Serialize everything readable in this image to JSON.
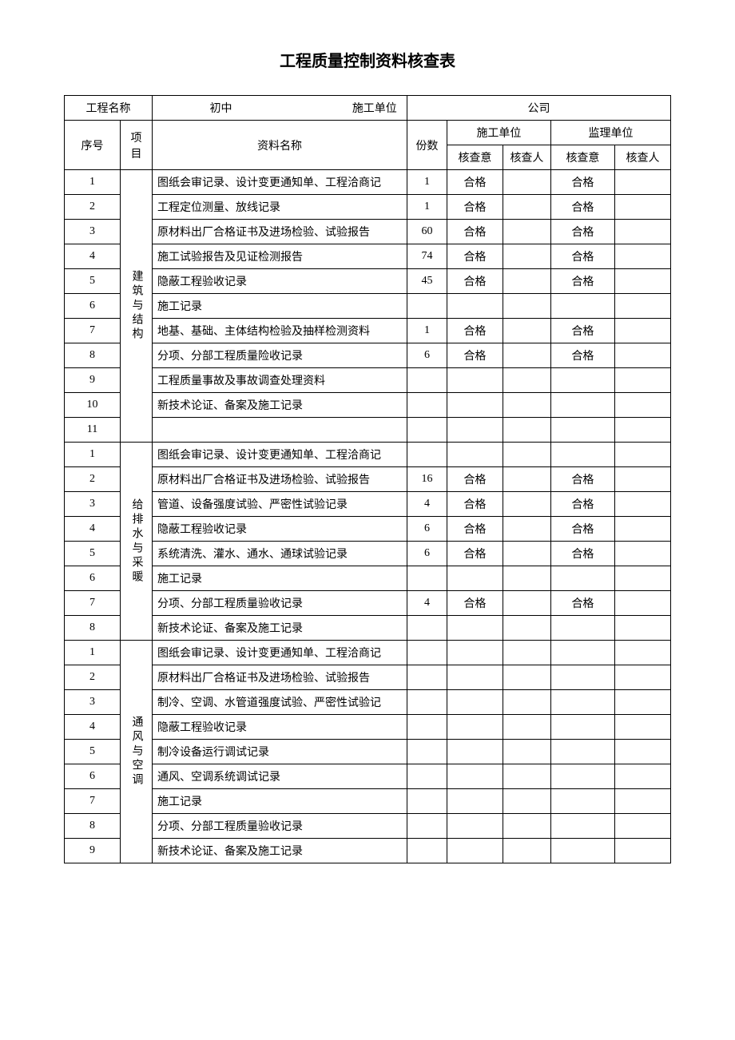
{
  "title": "工程质量控制资料核查表",
  "header_row": {
    "project_name_label": "工程名称",
    "project_name_value": "初中",
    "construction_unit_label": "施工单位",
    "construction_unit_value": "公司"
  },
  "columns": {
    "seq": "序号",
    "category": "项目",
    "doc_name": "资料名称",
    "qty": "份数",
    "construction_unit": "施工单位",
    "supervision_unit": "监理单位",
    "check_opinion": "核查意",
    "check_person": "核查人"
  },
  "sections": [
    {
      "category": "建筑与结构",
      "rows": [
        {
          "num": "1",
          "name": "图纸会审记录、设计变更通知单、工程洽商记",
          "qty": "1",
          "c1": "合格",
          "p1": "",
          "c2": "合格",
          "p2": ""
        },
        {
          "num": "2",
          "name": "工程定位测量、放线记录",
          "qty": "1",
          "c1": "合格",
          "p1": "",
          "c2": "合格",
          "p2": ""
        },
        {
          "num": "3",
          "name": "原材料出厂合格证书及进场检验、试验报告",
          "qty": "60",
          "c1": "合格",
          "p1": "",
          "c2": "合格",
          "p2": ""
        },
        {
          "num": "4",
          "name": "施工试验报告及见证检测报告",
          "qty": "74",
          "c1": "合格",
          "p1": "",
          "c2": "合格",
          "p2": ""
        },
        {
          "num": "5",
          "name": "隐蔽工程验收记录",
          "qty": "45",
          "c1": "合格",
          "p1": "",
          "c2": "合格",
          "p2": ""
        },
        {
          "num": "6",
          "name": "施工记录",
          "qty": "",
          "c1": "",
          "p1": "",
          "c2": "",
          "p2": ""
        },
        {
          "num": "7",
          "name": "地基、基础、主体结构检验及抽样检测资料",
          "qty": "1",
          "c1": "合格",
          "p1": "",
          "c2": "合格",
          "p2": ""
        },
        {
          "num": "8",
          "name": "分项、分部工程质量险收记录",
          "qty": "6",
          "c1": "合格",
          "p1": "",
          "c2": "合格",
          "p2": ""
        },
        {
          "num": "9",
          "name": "工程质量事故及事故调查处理资料",
          "qty": "",
          "c1": "",
          "p1": "",
          "c2": "",
          "p2": ""
        },
        {
          "num": "10",
          "name": "新技术论证、备案及施工记录",
          "qty": "",
          "c1": "",
          "p1": "",
          "c2": "",
          "p2": ""
        },
        {
          "num": "11",
          "name": "",
          "qty": "",
          "c1": "",
          "p1": "",
          "c2": "",
          "p2": ""
        }
      ]
    },
    {
      "category": "给排水与采暖",
      "rows": [
        {
          "num": "1",
          "name": "图纸会审记录、设计变更通知单、工程洽商记",
          "qty": "",
          "c1": "",
          "p1": "",
          "c2": "",
          "p2": ""
        },
        {
          "num": "2",
          "name": "原材料出厂合格证书及进场检验、试验报告",
          "qty": "16",
          "c1": "合格",
          "p1": "",
          "c2": "合格",
          "p2": ""
        },
        {
          "num": "3",
          "name": "管道、设备强度试验、严密性试验记录",
          "qty": "4",
          "c1": "合格",
          "p1": "",
          "c2": "合格",
          "p2": ""
        },
        {
          "num": "4",
          "name": "隐蔽工程验收记录",
          "qty": "6",
          "c1": "合格",
          "p1": "",
          "c2": "合格",
          "p2": ""
        },
        {
          "num": "5",
          "name": "系统清洗、灌水、通水、通球试验记录",
          "qty": "6",
          "c1": "合格",
          "p1": "",
          "c2": "合格",
          "p2": ""
        },
        {
          "num": "6",
          "name": "施工记录",
          "qty": "",
          "c1": "",
          "p1": "",
          "c2": "",
          "p2": ""
        },
        {
          "num": "7",
          "name": "分项、分部工程质量验收记录",
          "qty": "4",
          "c1": "合格",
          "p1": "",
          "c2": "合格",
          "p2": ""
        },
        {
          "num": "8",
          "name": "新技术论证、备案及施工记录",
          "qty": "",
          "c1": "",
          "p1": "",
          "c2": "",
          "p2": ""
        }
      ]
    },
    {
      "category": "通风与空调",
      "rows": [
        {
          "num": "1",
          "name": "图纸会审记录、设计变更通知单、工程洽商记",
          "qty": "",
          "c1": "",
          "p1": "",
          "c2": "",
          "p2": ""
        },
        {
          "num": "2",
          "name": "原材料出厂合格证书及进场检验、试验报告",
          "qty": "",
          "c1": "",
          "p1": "",
          "c2": "",
          "p2": ""
        },
        {
          "num": "3",
          "name": "制冷、空调、水管道强度试验、严密性试验记",
          "qty": "",
          "c1": "",
          "p1": "",
          "c2": "",
          "p2": ""
        },
        {
          "num": "4",
          "name": "隐蔽工程验收记录",
          "qty": "",
          "c1": "",
          "p1": "",
          "c2": "",
          "p2": ""
        },
        {
          "num": "5",
          "name": "制冷设备运行调试记录",
          "qty": "",
          "c1": "",
          "p1": "",
          "c2": "",
          "p2": ""
        },
        {
          "num": "6",
          "name": "通风、空调系统调试记录",
          "qty": "",
          "c1": "",
          "p1": "",
          "c2": "",
          "p2": ""
        },
        {
          "num": "7",
          "name": "施工记录",
          "qty": "",
          "c1": "",
          "p1": "",
          "c2": "",
          "p2": ""
        },
        {
          "num": "8",
          "name": "分项、分部工程质量验收记录",
          "qty": "",
          "c1": "",
          "p1": "",
          "c2": "",
          "p2": ""
        },
        {
          "num": "9",
          "name": "新技术论证、备案及施工记录",
          "qty": "",
          "c1": "",
          "p1": "",
          "c2": "",
          "p2": ""
        }
      ]
    }
  ]
}
